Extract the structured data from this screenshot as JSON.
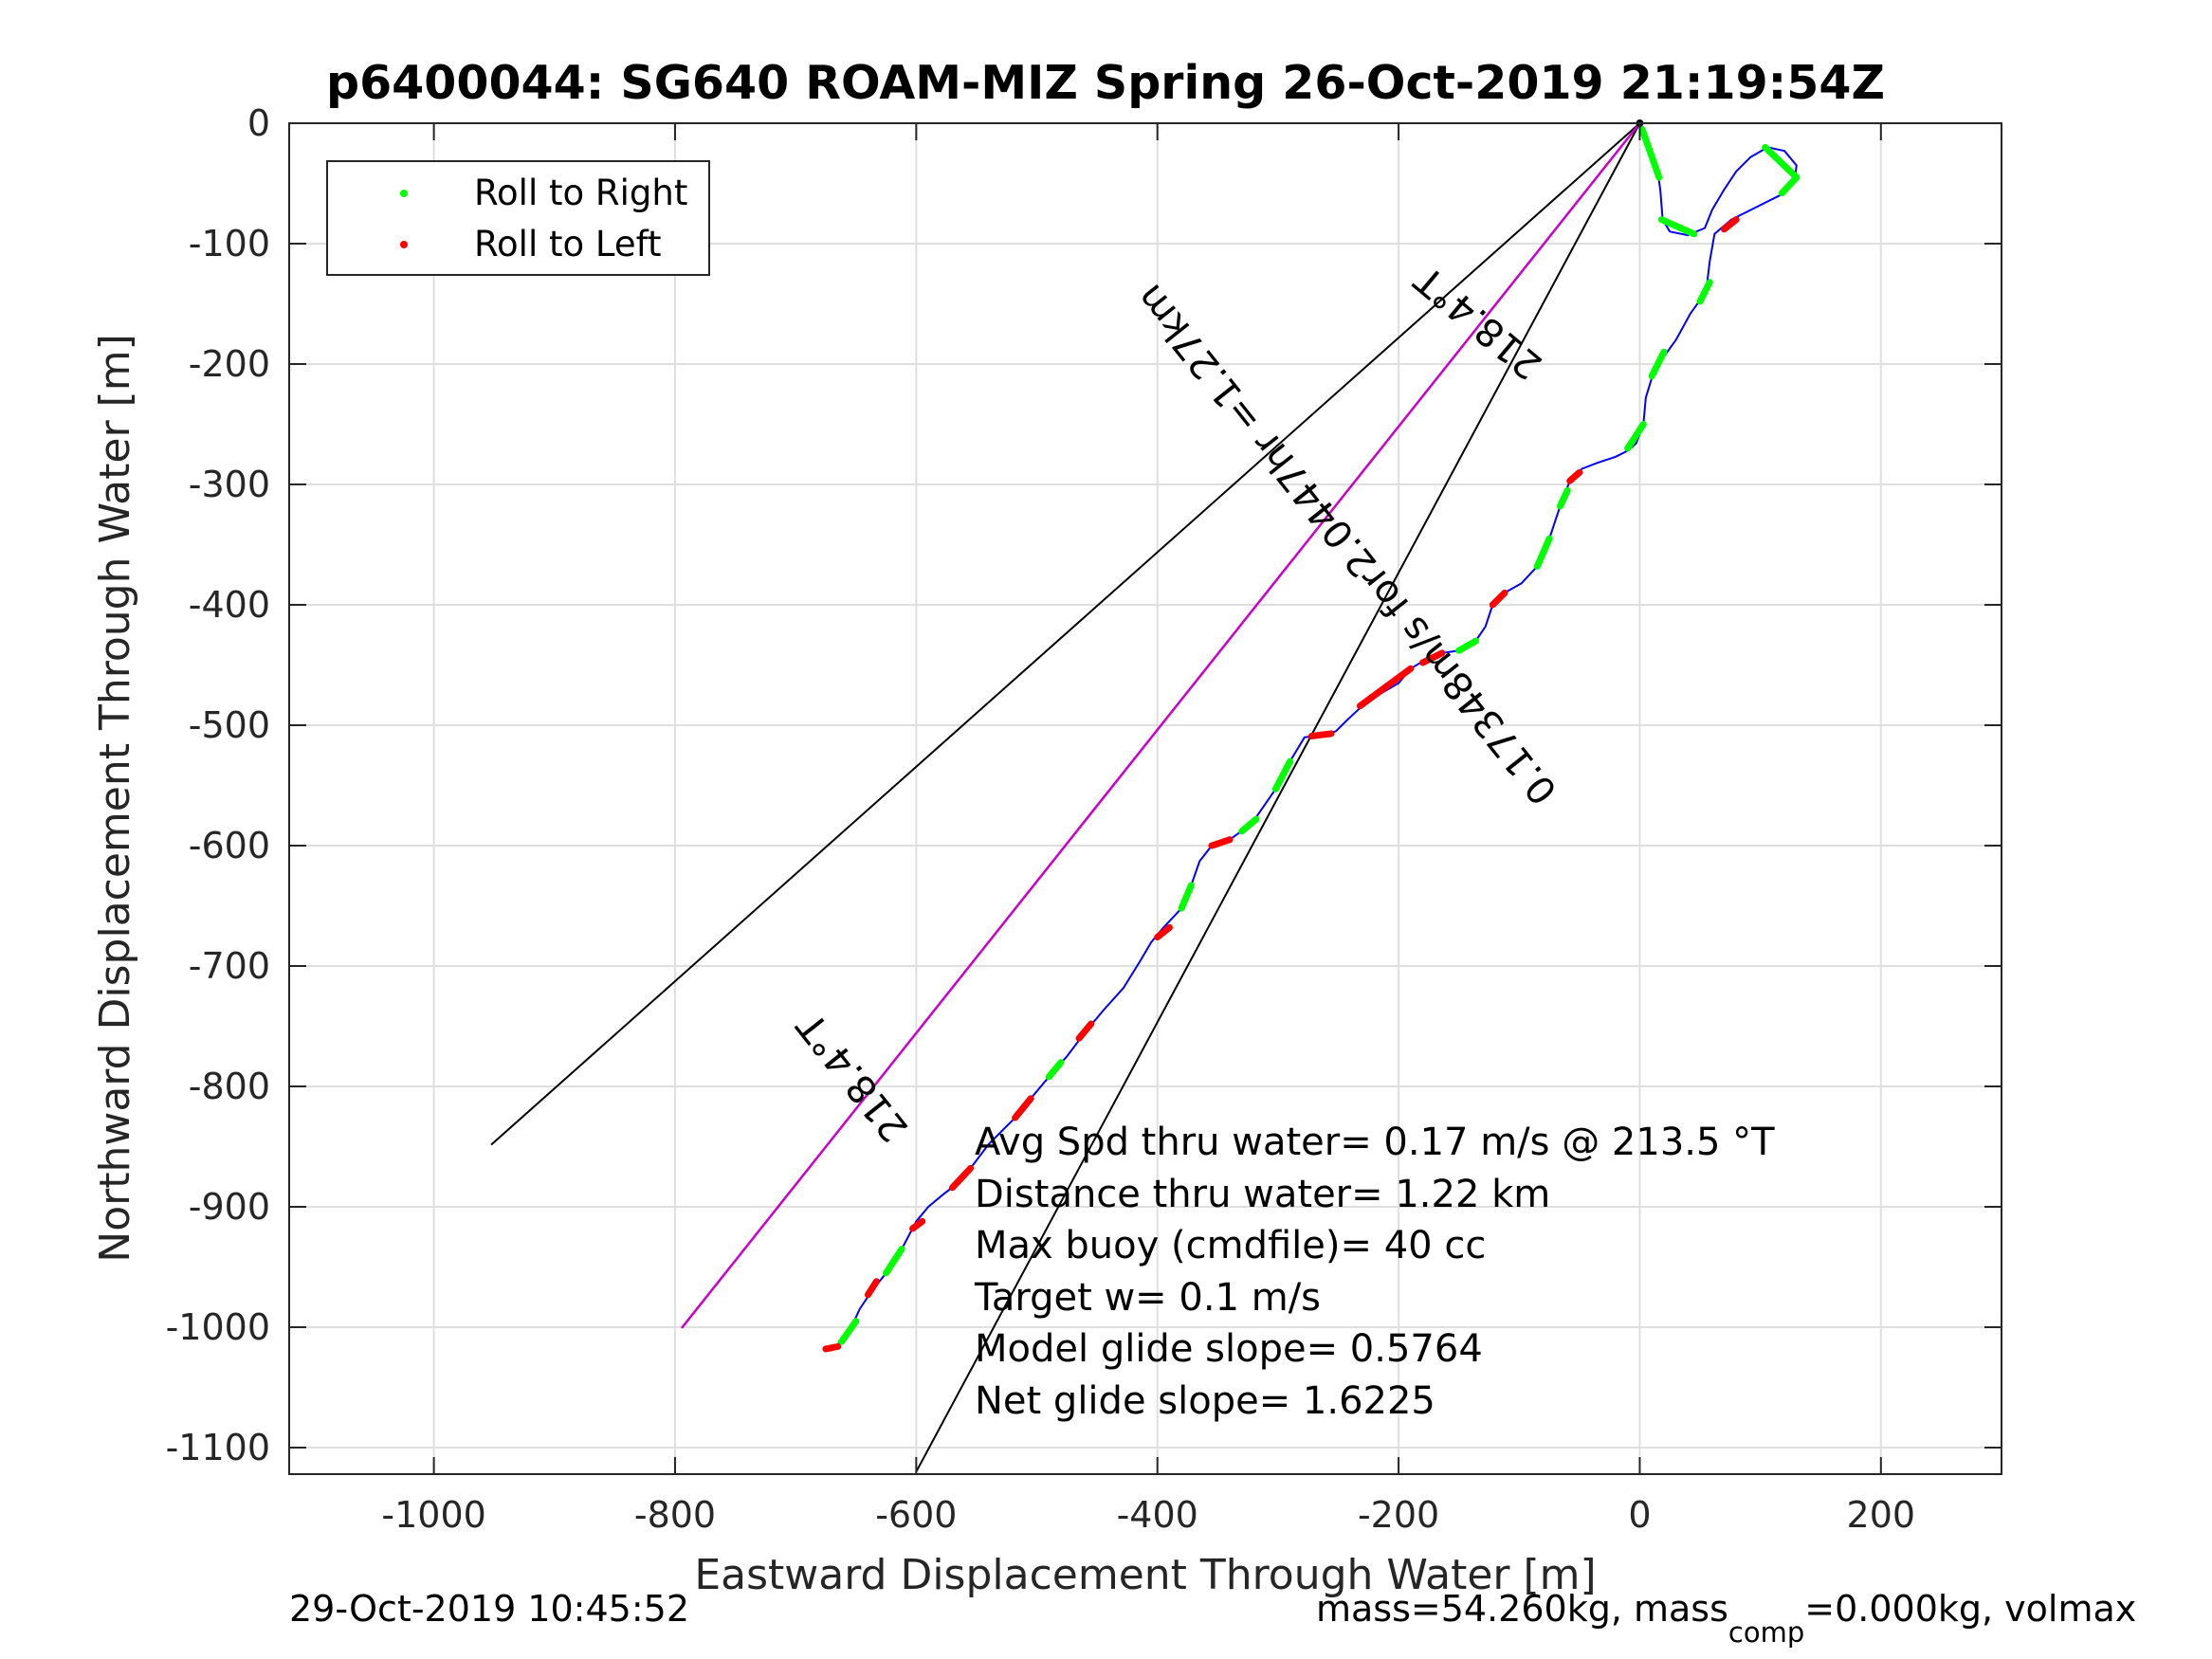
{
  "figure": {
    "title": "p6400044: SG640 ROAM-MIZ Spring 26-Oct-2019 21:19:54Z",
    "timestamp": "29-Oct-2019 10:45:52",
    "mass_text_a": "mass=54.260kg, mass",
    "mass_sub": "comp",
    "mass_text_b": "=0.000kg, volmax"
  },
  "legend": {
    "location": "top-left",
    "items": [
      {
        "label": "Roll to Right",
        "color": "#00ff00"
      },
      {
        "label": "Roll to Left",
        "color": "#ff0000"
      }
    ]
  },
  "stats": {
    "avg_speed": "Avg Spd thru water=  0.17 m/s @ 213.5 °T",
    "distance": "Distance thru water=  1.22 km",
    "max_buoy": "Max buoy (cmdfile)= 40 cc",
    "target_w": "Target w= 0.1 m/s",
    "model_glide": "Model glide slope= 0.5764",
    "net_glide": "Net glide slope= 1.6225"
  },
  "cone_labels": {
    "top": "218.4°T",
    "middle": "0.17348m/s for2.0447hr =1.27km",
    "bottom": "218.4°T"
  },
  "chart_data": {
    "type": "line",
    "title": "p6400044: SG640 ROAM-MIZ Spring 26-Oct-2019 21:19:54Z",
    "xlabel": "Eastward Displacement Through Water [m]",
    "ylabel": "Northward Displacement Through Water [m]",
    "xlim": [
      -1120,
      300
    ],
    "ylim": [
      -1122,
      0
    ],
    "xticks": [
      -1000,
      -800,
      -600,
      -400,
      -200,
      0,
      200
    ],
    "yticks": [
      0,
      -100,
      -200,
      -300,
      -400,
      -500,
      -600,
      -700,
      -800,
      -900,
      -1000,
      -1100
    ],
    "xtick_labels": [
      "-1000",
      "-800",
      "-600",
      "-400",
      "-200",
      "0",
      "200"
    ],
    "ytick_labels": [
      "0",
      "-100",
      "-200",
      "-300",
      "-400",
      "-500",
      "-600",
      "-700",
      "-800",
      "-900",
      "-1000",
      "-1100"
    ],
    "grid": true,
    "colors": {
      "track": "#0000ff",
      "mean_vector": "#cc00cc",
      "cone": "#000000",
      "roll_right": "#00ff00",
      "roll_left": "#ff0000"
    },
    "track": [
      [
        0,
        0
      ],
      [
        5,
        -15
      ],
      [
        14,
        -35
      ],
      [
        17,
        -55
      ],
      [
        19,
        -80
      ],
      [
        25,
        -90
      ],
      [
        40,
        -93
      ],
      [
        54,
        -87
      ],
      [
        60,
        -72
      ],
      [
        70,
        -55
      ],
      [
        80,
        -40
      ],
      [
        92,
        -28
      ],
      [
        106,
        -20
      ],
      [
        120,
        -23
      ],
      [
        130,
        -35
      ],
      [
        128,
        -50
      ],
      [
        116,
        -60
      ],
      [
        100,
        -68
      ],
      [
        88,
        -74
      ],
      [
        76,
        -80
      ],
      [
        62,
        -92
      ],
      [
        58,
        -115
      ],
      [
        55,
        -140
      ],
      [
        42,
        -158
      ],
      [
        30,
        -180
      ],
      [
        12,
        -205
      ],
      [
        5,
        -228
      ],
      [
        3,
        -250
      ],
      [
        -3,
        -266
      ],
      [
        -10,
        -272
      ],
      [
        -20,
        -277
      ],
      [
        -35,
        -282
      ],
      [
        -48,
        -287
      ],
      [
        -58,
        -297
      ],
      [
        -66,
        -318
      ],
      [
        -75,
        -345
      ],
      [
        -85,
        -368
      ],
      [
        -98,
        -382
      ],
      [
        -112,
        -390
      ],
      [
        -122,
        -400
      ],
      [
        -128,
        -418
      ],
      [
        -136,
        -430
      ],
      [
        -150,
        -438
      ],
      [
        -164,
        -440
      ],
      [
        -175,
        -444
      ],
      [
        -190,
        -453
      ],
      [
        -200,
        -465
      ],
      [
        -212,
        -472
      ],
      [
        -228,
        -482
      ],
      [
        -242,
        -495
      ],
      [
        -252,
        -505
      ],
      [
        -262,
        -508
      ],
      [
        -278,
        -510
      ],
      [
        -290,
        -530
      ],
      [
        -302,
        -553
      ],
      [
        -322,
        -582
      ],
      [
        -340,
        -595
      ],
      [
        -355,
        -600
      ],
      [
        -365,
        -613
      ],
      [
        -372,
        -633
      ],
      [
        -380,
        -652
      ],
      [
        -395,
        -668
      ],
      [
        -405,
        -680
      ],
      [
        -415,
        -697
      ],
      [
        -428,
        -718
      ],
      [
        -445,
        -737
      ],
      [
        -460,
        -755
      ],
      [
        -475,
        -775
      ],
      [
        -490,
        -792
      ],
      [
        -505,
        -810
      ],
      [
        -520,
        -828
      ],
      [
        -540,
        -848
      ],
      [
        -555,
        -868
      ],
      [
        -565,
        -880
      ],
      [
        -578,
        -890
      ],
      [
        -590,
        -900
      ],
      [
        -600,
        -912
      ],
      [
        -612,
        -935
      ],
      [
        -625,
        -955
      ],
      [
        -637,
        -970
      ],
      [
        -647,
        -985
      ],
      [
        -655,
        -1003
      ],
      [
        -662,
        -1012
      ],
      [
        -670,
        -1017
      ]
    ],
    "roll_right_segments": [
      [
        [
          2,
          -5
        ],
        [
          16,
          -45
        ]
      ],
      [
        [
          18,
          -80
        ],
        [
          45,
          -92
        ]
      ],
      [
        [
          104,
          -20
        ],
        [
          130,
          -45
        ]
      ],
      [
        [
          130,
          -45
        ],
        [
          118,
          -58
        ]
      ],
      [
        [
          58,
          -132
        ],
        [
          50,
          -148
        ]
      ],
      [
        [
          20,
          -190
        ],
        [
          10,
          -210
        ]
      ],
      [
        [
          3,
          -250
        ],
        [
          -10,
          -270
        ]
      ],
      [
        [
          -60,
          -305
        ],
        [
          -66,
          -318
        ]
      ],
      [
        [
          -75,
          -345
        ],
        [
          -85,
          -368
        ]
      ],
      [
        [
          -136,
          -430
        ],
        [
          -150,
          -438
        ]
      ],
      [
        [
          -290,
          -530
        ],
        [
          -302,
          -553
        ]
      ],
      [
        [
          -318,
          -578
        ],
        [
          -330,
          -588
        ]
      ],
      [
        [
          -372,
          -633
        ],
        [
          -380,
          -652
        ]
      ],
      [
        [
          -480,
          -780
        ],
        [
          -490,
          -792
        ]
      ],
      [
        [
          -612,
          -935
        ],
        [
          -625,
          -955
        ]
      ],
      [
        [
          -650,
          -995
        ],
        [
          -662,
          -1012
        ]
      ]
    ],
    "roll_left_segments": [
      [
        [
          70,
          -88
        ],
        [
          80,
          -80
        ]
      ],
      [
        [
          -50,
          -290
        ],
        [
          -58,
          -297
        ]
      ],
      [
        [
          -112,
          -390
        ],
        [
          -122,
          -400
        ]
      ],
      [
        [
          -164,
          -440
        ],
        [
          -180,
          -448
        ]
      ],
      [
        [
          -190,
          -453
        ],
        [
          -232,
          -484
        ]
      ],
      [
        [
          -256,
          -507
        ],
        [
          -272,
          -509
        ]
      ],
      [
        [
          -340,
          -595
        ],
        [
          -355,
          -600
        ]
      ],
      [
        [
          -390,
          -668
        ],
        [
          -400,
          -676
        ]
      ],
      [
        [
          -455,
          -748
        ],
        [
          -465,
          -760
        ]
      ],
      [
        [
          -505,
          -810
        ],
        [
          -518,
          -826
        ]
      ],
      [
        [
          -555,
          -868
        ],
        [
          -570,
          -884
        ]
      ],
      [
        [
          -595,
          -912
        ],
        [
          -603,
          -918
        ]
      ],
      [
        [
          -633,
          -962
        ],
        [
          -640,
          -973
        ]
      ],
      [
        [
          -665,
          -1016
        ],
        [
          -675,
          -1018
        ]
      ]
    ],
    "mean_vector": [
      [
        0,
        0
      ],
      [
        -794,
        -1000
      ]
    ],
    "cone_left": [
      [
        0,
        0
      ],
      [
        -952,
        -848
      ]
    ],
    "cone_right": [
      [
        0,
        0
      ],
      [
        -600,
        -1120
      ]
    ]
  }
}
